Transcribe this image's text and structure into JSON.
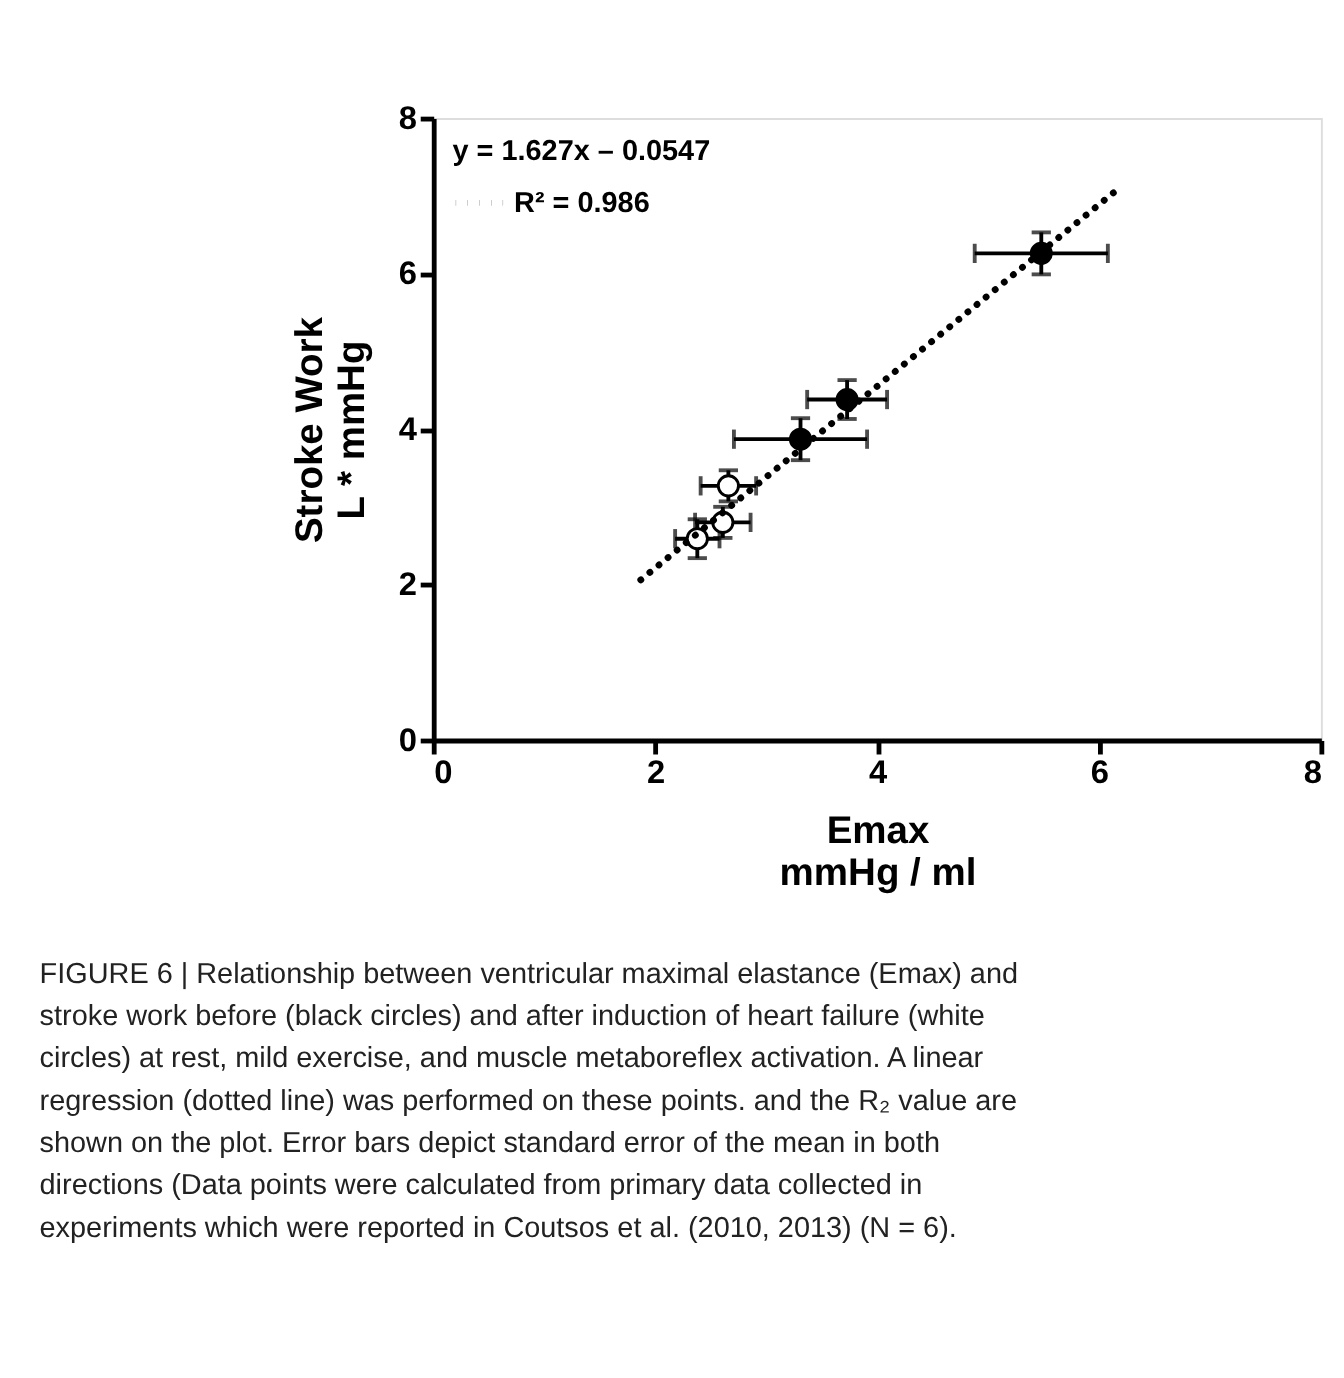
{
  "chart_data": {
    "type": "scatter",
    "xlabel": "Emax\nmmHg / ml",
    "ylabel": "Stroke Work\nL * mmHg",
    "xlim": [
      0,
      8
    ],
    "xticks": [
      0,
      2,
      4,
      6,
      8
    ],
    "ylim": [
      0,
      8
    ],
    "yticks": [
      0,
      2,
      4,
      6,
      8
    ],
    "grid": false,
    "marker": "circle",
    "legend": "top left",
    "legend_title": "y = 1.627x – 0.0547",
    "series": [
      {
        "color": "#000000",
        "x": [
          5.48,
          3.73,
          3.31
        ],
        "values": [
          6.26,
          4.38,
          3.87
        ],
        "errors": [
          0.27,
          0.25,
          0.27
        ],
        "xerrors": [
          0.6,
          0.36,
          0.6
        ]
      },
      {
        "color": "#ffffff",
        "x": [
          2.66,
          2.61,
          2.38
        ],
        "values": [
          3.27,
          2.8,
          2.59
        ],
        "errors": [
          0.2,
          0.2,
          0.25
        ],
        "xerrors": [
          0.25,
          0.25,
          0.2
        ]
      },
      {
        "type": "line",
        "name": "R² = 0.986",
        "color": "#000000",
        "line_style": "dotted",
        "marker": "none",
        "x": [
          1.87,
          6.19
        ],
        "values": [
          2.06,
          7.11
        ]
      }
    ],
    "annotations": [
      "FIGURE 6 | Relationship between ventricular maximal elastance (Emax) and stroke work before (black circles) and after induction of heart failure (white circles) at rest, mild exercise, and muscle metaboreflex activation. A linear regression (dotted line) was performed on these points. and the R₂ value are shown on the plot. Error bars depict standard error of the mean in both directions (Data points were calculated from primary data collected in experiments which were reported in Coutsos et al. (2010, 2013) (N = 6)."
    ]
  }
}
